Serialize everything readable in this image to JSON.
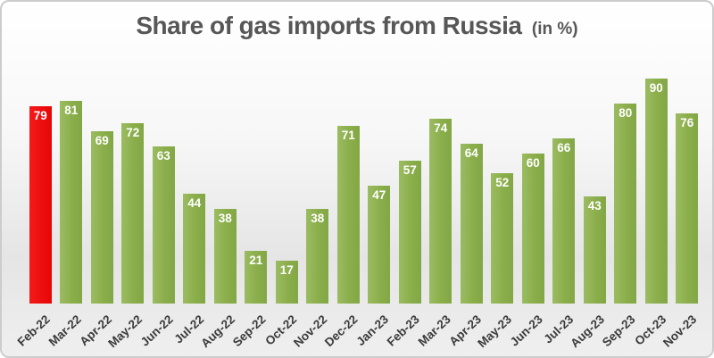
{
  "title": {
    "main": "Share of gas imports from Russia",
    "suffix": "(in %)"
  },
  "colors": {
    "bar_green": "#8bae4b",
    "highlight_red": "#ea0c0c",
    "value_label": "#ffffff",
    "axis_text": "#3a3a3a",
    "title_text": "#575757",
    "frame_border": "#cccccc"
  },
  "chart_data": {
    "type": "bar",
    "title": "Share of gas imports from Russia",
    "title_suffix": "(in %)",
    "xlabel": "",
    "ylabel": "",
    "categories": [
      "Feb-22",
      "Mar-22",
      "Apr-22",
      "May-22",
      "Jun-22",
      "Jul-22",
      "Aug-22",
      "Sep-22",
      "Oct-22",
      "Nov-22",
      "Dec-22",
      "Jan-23",
      "Feb-23",
      "Mar-23",
      "Apr-23",
      "May-23",
      "Jun-23",
      "Jul-23",
      "Aug-23",
      "Sep-23",
      "Oct-23",
      "Nov-23"
    ],
    "values": [
      79,
      81,
      69,
      72,
      63,
      44,
      38,
      21,
      17,
      38,
      71,
      47,
      57,
      74,
      64,
      52,
      60,
      66,
      43,
      80,
      90,
      76
    ],
    "highlight_index": 0,
    "highlight_category": "Feb-22",
    "ylim": [
      0,
      95
    ],
    "grid": false,
    "legend": "none",
    "value_labels_position": "inside-top",
    "x_tick_rotation_deg": -43
  }
}
